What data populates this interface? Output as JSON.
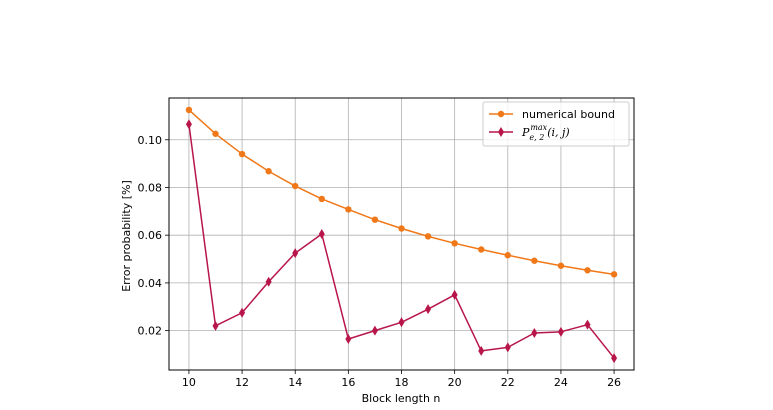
{
  "chart_data": {
    "type": "line",
    "title": "",
    "xlabel": "Block length n",
    "ylabel": "Error probability [%]",
    "xlim": [
      9.25,
      26.75
    ],
    "ylim": [
      0.0035,
      0.1175
    ],
    "xticks": [
      10,
      12,
      14,
      16,
      18,
      20,
      22,
      24,
      26
    ],
    "yticks": [
      0.02,
      0.04,
      0.06,
      0.08,
      0.1
    ],
    "ytick_labels": [
      "0.02",
      "0.04",
      "0.06",
      "0.08",
      "0.10"
    ],
    "grid": true,
    "legend_position": "top-right",
    "x": [
      10,
      11,
      12,
      13,
      14,
      15,
      16,
      17,
      18,
      19,
      20,
      21,
      22,
      23,
      24,
      25,
      26
    ],
    "series": [
      {
        "name": "numerical bound",
        "color": "#f07818",
        "marker": "circle",
        "values": [
          0.1125,
          0.1025,
          0.094,
          0.0868,
          0.0806,
          0.0752,
          0.0708,
          0.0665,
          0.0628,
          0.0595,
          0.0566,
          0.054,
          0.0516,
          0.0493,
          0.0472,
          0.0453,
          0.0436
        ]
      },
      {
        "name": "P_{e,2}^{max}(i,j)",
        "color": "#b8164a",
        "marker": "diamond",
        "values": [
          0.1065,
          0.022,
          0.0275,
          0.0405,
          0.0525,
          0.0605,
          0.0165,
          0.02,
          0.0235,
          0.029,
          0.035,
          0.0115,
          0.013,
          0.019,
          0.0195,
          0.0225,
          0.0085
        ]
      }
    ]
  }
}
